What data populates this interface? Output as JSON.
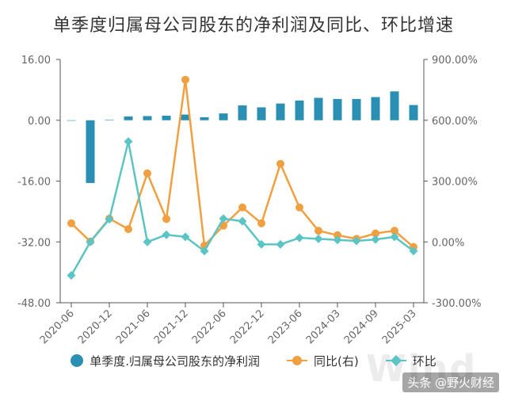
{
  "chart_data": {
    "type": "bar+line",
    "title": "单季度归属母公司股东的净利润及同比、环比增速",
    "categories": [
      "2020-06",
      "2020-09",
      "2020-12",
      "2021-03",
      "2021-06",
      "2021-09",
      "2021-12",
      "2022-03",
      "2022-06",
      "2022-09",
      "2022-12",
      "2023-03",
      "2023-06",
      "2023-09",
      "2024-03",
      "2024-06",
      "2024-09",
      "2024-12",
      "2025-03"
    ],
    "x_tick_labels": [
      "2020-06",
      "2020-12",
      "2021-06",
      "2021-12",
      "2022-06",
      "2022-12",
      "2023-06",
      "2024-03",
      "2024-09",
      "2025-03"
    ],
    "x_tick_indices": [
      0,
      2,
      4,
      6,
      8,
      10,
      12,
      14,
      16,
      18
    ],
    "left_axis": {
      "ylim": [
        -48,
        16
      ],
      "ticks": [
        "16.00",
        "0.00",
        "-16.00",
        "-32.00",
        "-48.00"
      ],
      "tick_values": [
        16,
        0,
        -16,
        -32,
        -48
      ]
    },
    "right_axis": {
      "ylim": [
        -300,
        900
      ],
      "ticks": [
        "900.00%",
        "600.00%",
        "300.00%",
        "0.00%",
        "-300.00%"
      ],
      "tick_values": [
        900,
        600,
        300,
        0,
        -300
      ]
    },
    "series": [
      {
        "name": "单季度.归属母公司股东的净利润",
        "kind": "bar",
        "axis": "left",
        "color": "#2a8fb3",
        "values": [
          0.0,
          -16.5,
          0.1,
          1.0,
          1.1,
          1.2,
          1.5,
          0.8,
          1.8,
          3.9,
          3.4,
          4.4,
          5.2,
          5.9,
          5.6,
          5.6,
          6.1,
          7.6,
          4.0
        ]
      },
      {
        "name": "同比(右)",
        "kind": "line",
        "axis": "right",
        "color": "#f0a040",
        "marker": "circle",
        "values": [
          92,
          2,
          115,
          63,
          338,
          113,
          800,
          -18,
          80,
          170,
          92,
          385,
          170,
          55,
          33,
          15,
          42,
          55,
          -25
        ]
      },
      {
        "name": "环比",
        "kind": "line",
        "axis": "right",
        "color": "#5cc4c4",
        "marker": "diamond",
        "values": [
          -165,
          0,
          112,
          495,
          0,
          35,
          25,
          -45,
          115,
          102,
          -12,
          -12,
          20,
          15,
          10,
          5,
          12,
          25,
          -45
        ]
      }
    ],
    "grid": false,
    "legend": "bottom"
  },
  "legend": {
    "bar_label": "单季度.归属母公司股东的净利润",
    "yoy_label": "同比(右)",
    "qoq_label": "环比"
  },
  "colors": {
    "bar": "#2a8fb3",
    "yoy": "#f0a040",
    "qoq": "#5cc4c4",
    "axis": "#555555"
  },
  "watermark": {
    "source_brand": "Wind",
    "text": "头条 @野火财经"
  }
}
